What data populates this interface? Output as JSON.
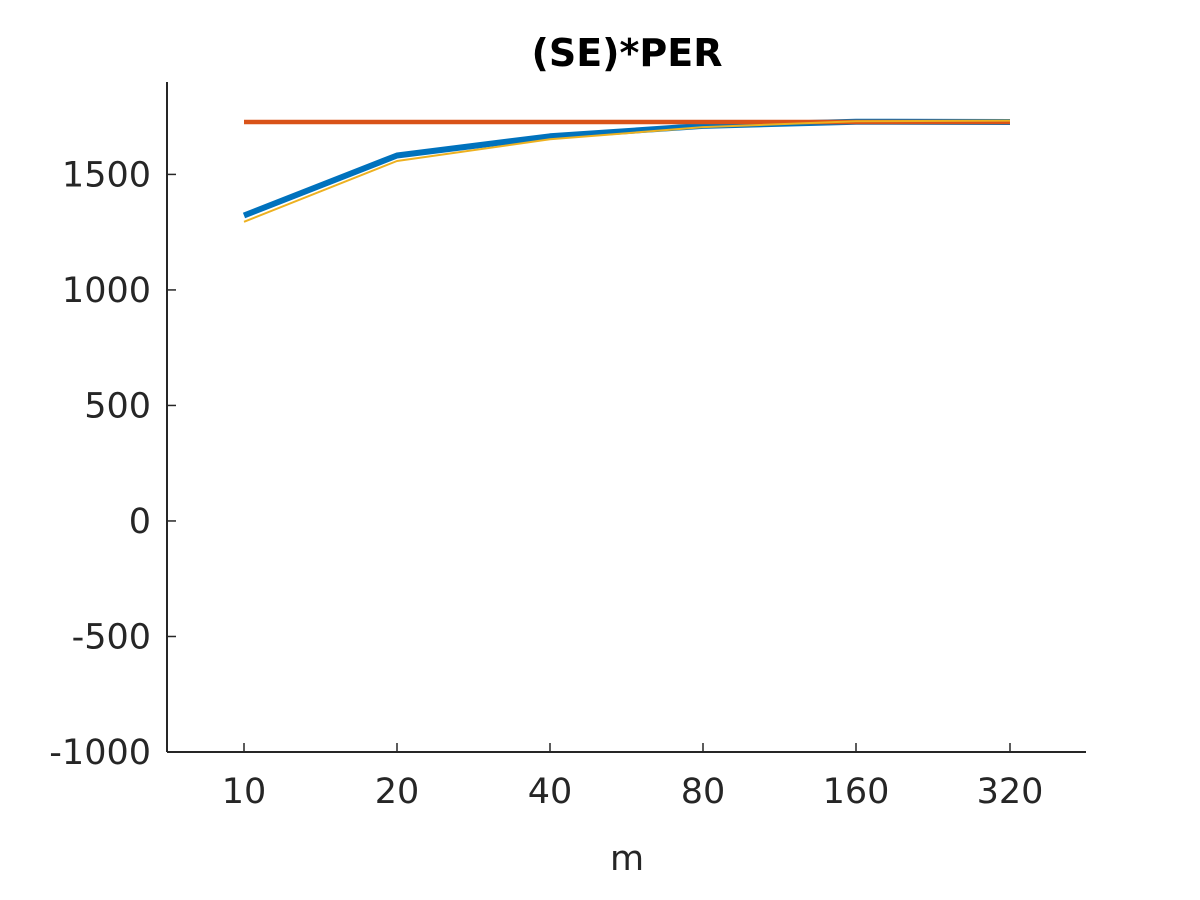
{
  "chart_data": {
    "type": "line",
    "title": "(SE)*PER",
    "xlabel": "m",
    "ylabel": "",
    "x_categories": [
      "10",
      "20",
      "40",
      "80",
      "160",
      "320"
    ],
    "ylim": [
      -1000,
      1900
    ],
    "yticks": [
      -1000,
      -500,
      0,
      500,
      1000,
      1500
    ],
    "ytick_labels": [
      "-1000",
      "-500",
      "0",
      "500",
      "1000",
      "1500"
    ],
    "grid": false,
    "series": [
      {
        "color": "#0072BD",
        "width": "thick",
        "values": [
          1322,
          1582,
          1665,
          1710,
          1728,
          1727
        ]
      },
      {
        "color": "#D95319",
        "width": "medium",
        "values": [
          1727,
          1727,
          1727,
          1727,
          1727,
          1727
        ]
      },
      {
        "color": "#EDB120",
        "width": "thin",
        "values": [
          1295,
          1558,
          1652,
          1705,
          1730,
          1733
        ]
      }
    ]
  }
}
